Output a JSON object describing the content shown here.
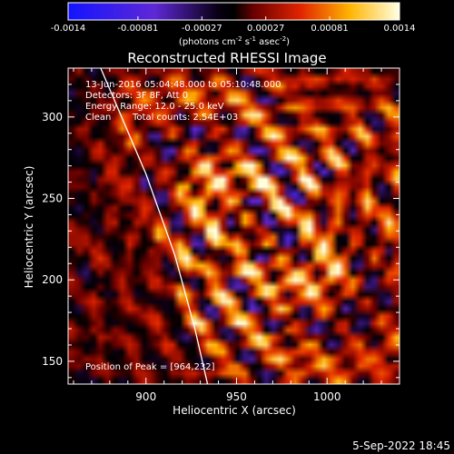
{
  "chart_data": {
    "type": "heatmap",
    "title": "Reconstructed RHESSI Image",
    "xlabel": "Heliocentric X (arcsec)",
    "ylabel": "Heliocentric Y (arcsec)",
    "x_ticks": [
      900,
      950,
      1000
    ],
    "y_ticks": [
      150,
      200,
      250,
      300
    ],
    "xlim": [
      857,
      1040
    ],
    "ylim": [
      136,
      330
    ],
    "colorbar": {
      "range": [
        -0.0014,
        0.0014
      ],
      "tick_values": [
        -0.0014,
        -0.00081,
        -0.00027,
        0.00027,
        0.00081,
        0.0014
      ],
      "tick_labels": [
        "-0.0014",
        "-0.00081",
        "-0.00027",
        "0.00027",
        "0.00081",
        "0.0014"
      ],
      "unit_parts": [
        "(photons cm",
        "-2",
        " s",
        "-1",
        " asec",
        "-2",
        ")"
      ]
    },
    "annotations": [
      "13-Jun-2016 05:04:48.000 to 05:10:48.000",
      "Detectors: 3F 8F, Att 0",
      "Energy Range: 12.0 - 25.0 keV",
      "Clean",
      "Total counts: 2.54E+03"
    ],
    "peak": {
      "label": "Position of Peak = [964,232]",
      "x": 964,
      "y": 232
    },
    "limb_curve": [
      [
        875,
        330
      ],
      [
        900,
        265
      ],
      [
        916,
        215
      ],
      [
        927,
        170
      ],
      [
        934,
        136
      ]
    ],
    "footer": "5-Sep-2022 18:45"
  }
}
